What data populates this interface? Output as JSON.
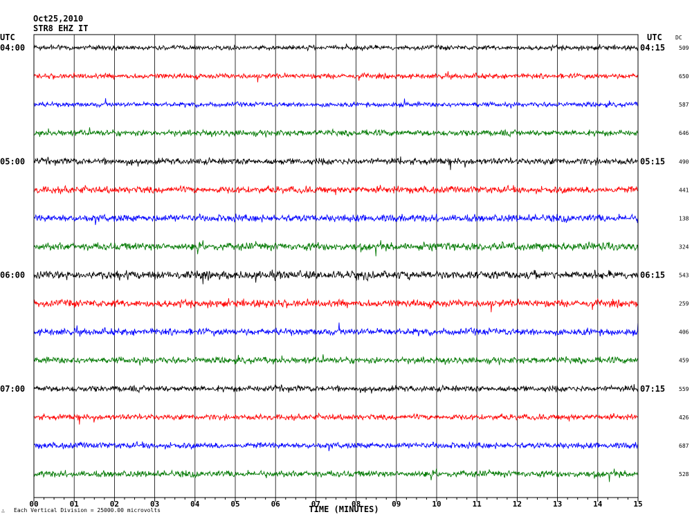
{
  "header": {
    "date": "Oct25,2010",
    "station": "STR8 EHZ IT"
  },
  "left_axis_label": "UTC",
  "right_axis_label": "UTC",
  "dc_label": "DC",
  "footer": {
    "note": "Each Vertical Division = 25000.00 microvolts",
    "logo_glyph": "∴"
  },
  "chart_data": {
    "type": "line",
    "title": "",
    "xlabel": "TIME (MINUTES)",
    "ylabel": "",
    "xlim": [
      0,
      15
    ],
    "x_tick_labels": [
      "00",
      "01",
      "02",
      "03",
      "04",
      "05",
      "06",
      "07",
      "08",
      "09",
      "10",
      "11",
      "12",
      "13",
      "14",
      "15"
    ],
    "trace_colors": [
      "#000000",
      "#ff0000",
      "#0000ff",
      "#007800"
    ],
    "left_time_labels": [
      {
        "row": 0,
        "label": "04:00"
      },
      {
        "row": 4,
        "label": "05:00"
      },
      {
        "row": 8,
        "label": "06:00"
      },
      {
        "row": 12,
        "label": "07:00"
      }
    ],
    "right_time_labels": [
      {
        "row": 0,
        "label": "04:15"
      },
      {
        "row": 4,
        "label": "05:15"
      },
      {
        "row": 8,
        "label": "06:15"
      },
      {
        "row": 12,
        "label": "07:15"
      }
    ],
    "dc_values": [
      "509",
      "650",
      "587",
      "646",
      "490",
      "441",
      "138",
      "324",
      "543",
      "259",
      "406",
      "459",
      "559",
      "426",
      "687",
      "528"
    ],
    "trace_amplitudes": [
      0.55,
      0.6,
      0.55,
      0.7,
      0.75,
      0.8,
      0.85,
      0.9,
      0.95,
      0.85,
      0.8,
      0.75,
      0.7,
      0.65,
      0.7,
      0.75
    ]
  }
}
